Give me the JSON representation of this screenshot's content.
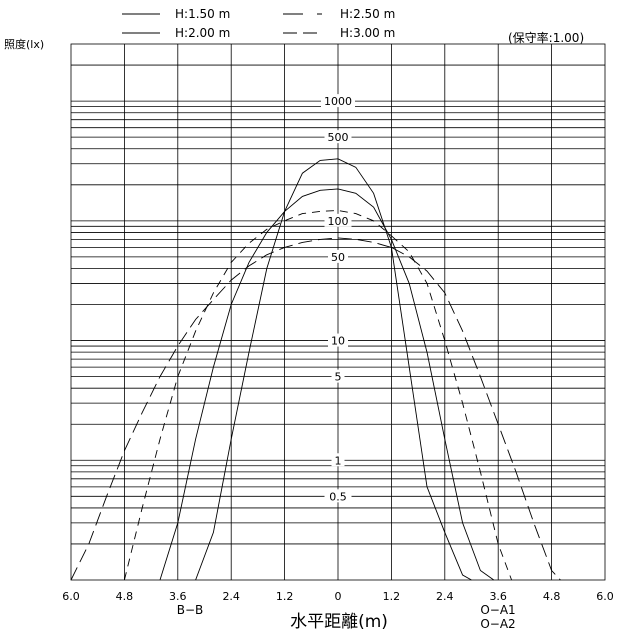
{
  "chart_data": {
    "type": "line",
    "title": "",
    "y_axis_label": "照度(lx)",
    "x_axis_label": "水平距離(m)",
    "maintenance_note": "(保守率:1.00)",
    "y_scale": "log",
    "ylim": [
      0.1,
      3000
    ],
    "xlim": [
      -6.0,
      6.0
    ],
    "x_ticks": [
      "6.0",
      "4.8",
      "3.6",
      "2.4",
      "1.2",
      "0",
      "1.2",
      "2.4",
      "3.6",
      "4.8",
      "6.0"
    ],
    "y_tick_labels": [
      "1000",
      "500",
      "100",
      "50",
      "10",
      "5",
      "1",
      "0.5"
    ],
    "left_section_label": "B−B",
    "right_section_labels": [
      "O−A1",
      "O−A2"
    ],
    "legend": [
      {
        "label": "H:1.50 m",
        "style": "solid"
      },
      {
        "label": "H:2.50 m",
        "style": "dash-short"
      },
      {
        "label": "H:2.00 m",
        "style": "solid"
      },
      {
        "label": "H:3.00 m",
        "style": "dash-long"
      }
    ],
    "series": [
      {
        "name": "H:1.50 m",
        "section": "B−B",
        "x": [
          -3.2,
          -2.8,
          -2.4,
          -2.0,
          -1.6,
          -1.2,
          -0.8,
          -0.4,
          0,
          0.4,
          0.8,
          1.2
        ],
        "y": [
          0.1,
          0.25,
          1.5,
          8,
          40,
          120,
          250,
          320,
          330,
          280,
          170,
          60
        ]
      },
      {
        "name": "H:1.50 m",
        "section": "O−A",
        "x": [
          1.2,
          1.6,
          2.0,
          2.4,
          2.8,
          3.0
        ],
        "y": [
          60,
          6,
          0.6,
          0.25,
          0.11,
          0.1
        ]
      },
      {
        "name": "H:2.00 m",
        "section": "B−B",
        "x": [
          -4.0,
          -3.6,
          -3.2,
          -2.8,
          -2.4,
          -2.0,
          -1.6,
          -1.2,
          -0.8,
          -0.4,
          0,
          0.4,
          0.8,
          1.2
        ],
        "y": [
          0.1,
          0.3,
          1.5,
          6,
          20,
          45,
          80,
          120,
          160,
          180,
          185,
          170,
          130,
          70
        ]
      },
      {
        "name": "H:2.00 m",
        "section": "O−A",
        "x": [
          1.2,
          1.6,
          2.0,
          2.4,
          2.8,
          3.2,
          3.5
        ],
        "y": [
          70,
          30,
          8,
          1.5,
          0.3,
          0.12,
          0.1
        ]
      },
      {
        "name": "H:2.50 m",
        "section": "B−B",
        "x": [
          -4.8,
          -4.4,
          -4.0,
          -3.6,
          -3.2,
          -2.8,
          -2.4,
          -2.0,
          -1.6,
          -1.2,
          -0.8,
          -0.4,
          0,
          0.4,
          0.8,
          1.2
        ],
        "y": [
          0.1,
          0.4,
          1.5,
          5,
          12,
          25,
          45,
          65,
          85,
          100,
          115,
          120,
          122,
          115,
          100,
          75
        ]
      },
      {
        "name": "H:2.50 m",
        "section": "O−A",
        "x": [
          1.2,
          1.6,
          2.0,
          2.4,
          2.8,
          3.2,
          3.6,
          3.9
        ],
        "y": [
          75,
          55,
          30,
          10,
          3,
          0.8,
          0.2,
          0.1
        ]
      },
      {
        "name": "H:3.00 m",
        "section": "B−B",
        "x": [
          -6.0,
          -5.6,
          -5.2,
          -4.8,
          -4.4,
          -4.0,
          -3.6,
          -3.2,
          -2.8,
          -2.4,
          -2.0,
          -1.6,
          -1.2,
          -0.8,
          -0.4,
          0,
          0.4,
          0.8,
          1.2
        ],
        "y": [
          0.1,
          0.2,
          0.5,
          1.2,
          2.5,
          5,
          9,
          15,
          22,
          32,
          42,
          52,
          60,
          66,
          70,
          72,
          70,
          66,
          60
        ]
      },
      {
        "name": "H:3.00 m",
        "section": "O−A",
        "x": [
          1.2,
          1.6,
          2.0,
          2.4,
          2.8,
          3.2,
          3.6,
          4.0,
          4.4,
          4.8,
          5.0
        ],
        "y": [
          60,
          50,
          38,
          25,
          12,
          5,
          2,
          0.8,
          0.3,
          0.12,
          0.1
        ]
      }
    ]
  }
}
